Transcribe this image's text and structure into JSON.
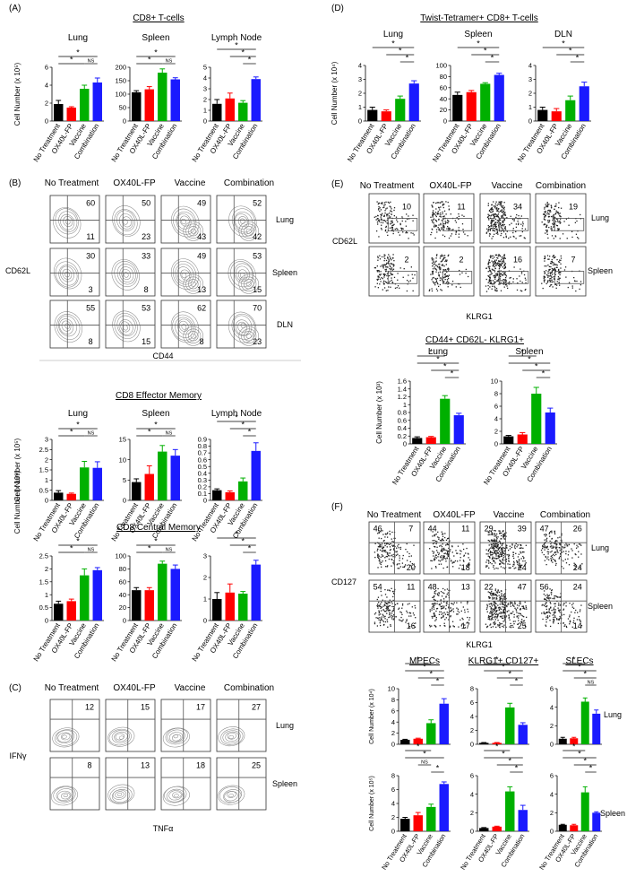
{
  "groups": [
    "No Treatment",
    "OX40L-FP",
    "Vaccine",
    "Combination"
  ],
  "colors": {
    "No Treatment": "#000000",
    "OX40L-FP": "#ff0000",
    "Vaccine": "#00b000",
    "Combination": "#1a1aff"
  },
  "common": {
    "ylabel_e3": "Cell Number (x 10³)",
    "ylabel_e4": "Cell Number (x 10⁴)",
    "ylabel_e5": "Cell Number (x 10⁵)",
    "ns": "NS",
    "star": "*"
  },
  "panels": {
    "A": {
      "letter": "(A)",
      "title": "CD8+ T-cells"
    },
    "B": {
      "letter": "(B)",
      "ylab": "CD62L",
      "xlab": "CD44",
      "rows": [
        "Lung",
        "Spleen",
        "DLN"
      ]
    },
    "C": {
      "letter": "(C)",
      "ylab": "IFNγ",
      "xlab": "TNFα",
      "rows": [
        "Lung",
        "Spleen"
      ]
    },
    "D": {
      "letter": "(D)",
      "title": "Twist-Tetramer+ CD8+ T-cells"
    },
    "E": {
      "letter": "(E)",
      "ylab": "CD62L",
      "xlab": "KLRG1",
      "rows": [
        "Lung",
        "Spleen"
      ]
    },
    "F": {
      "letter": "(F)",
      "ylab": "CD127",
      "xlab": "KLRG1",
      "rows": [
        "Lung",
        "Spleen"
      ]
    },
    "EM": {
      "title": "CD8 Effector Memory"
    },
    "CM": {
      "title": "CD8 Central Memory"
    },
    "E2": {
      "title": "CD44+ CD62L- KLRG1+"
    }
  },
  "flow": {
    "B": [
      [
        "60",
        "11"
      ],
      [
        "50",
        "23"
      ],
      [
        "49",
        "43"
      ],
      [
        "52",
        "42"
      ],
      [
        "30",
        "3"
      ],
      [
        "33",
        "8"
      ],
      [
        "49",
        "13"
      ],
      [
        "53",
        "15"
      ],
      [
        "55",
        "8"
      ],
      [
        "53",
        "15"
      ],
      [
        "62",
        "8"
      ],
      [
        "70",
        "23"
      ]
    ],
    "C": [
      "12",
      "15",
      "17",
      "27",
      "8",
      "13",
      "18",
      "25"
    ],
    "E": [
      "10",
      "11",
      "34",
      "19",
      "2",
      "2",
      "16",
      "7"
    ],
    "F": [
      [
        "46",
        "7",
        "20"
      ],
      [
        "44",
        "11",
        "18"
      ],
      [
        "29",
        "39",
        "24"
      ],
      [
        "47",
        "26",
        "24"
      ],
      [
        "54",
        "11",
        "16"
      ],
      [
        "48",
        "13",
        "17"
      ],
      [
        "22",
        "47",
        "25"
      ],
      [
        "56",
        "24",
        "14"
      ]
    ]
  },
  "chart_data": [
    {
      "id": "A-lung",
      "type": "bar",
      "title": "Lung",
      "ylabel": "Cell Number (x 10⁵)",
      "ylim": [
        0,
        6
      ],
      "ticks": [
        "0",
        "2",
        "4",
        "6"
      ],
      "categories": [
        "No Treatment",
        "OX40L-FP",
        "Vaccine",
        "Combination"
      ],
      "values": [
        1.9,
        1.5,
        3.6,
        4.3
      ],
      "errors": [
        0.4,
        0.1,
        0.4,
        0.5
      ]
    },
    {
      "id": "A-spleen",
      "type": "bar",
      "title": "Spleen",
      "ylim": [
        0,
        200
      ],
      "ticks": [
        "0",
        "50",
        "100",
        "150",
        "200"
      ],
      "categories": [
        "No Treatment",
        "OX40L-FP",
        "Vaccine",
        "Combination"
      ],
      "values": [
        107,
        118,
        180,
        155
      ],
      "errors": [
        6,
        10,
        14,
        6
      ]
    },
    {
      "id": "A-ln",
      "type": "bar",
      "title": "Lymph Node",
      "ylim": [
        0,
        5
      ],
      "ticks": [
        "0",
        "1",
        "2",
        "3",
        "4",
        "5"
      ],
      "categories": [
        "No Treatment",
        "OX40L-FP",
        "Vaccine",
        "Combination"
      ],
      "values": [
        1.6,
        2.1,
        1.7,
        3.9
      ],
      "errors": [
        0.4,
        0.5,
        0.2,
        0.2
      ]
    },
    {
      "id": "D-lung",
      "type": "bar",
      "title": "Lung",
      "ylabel": "Cell Number (x 10⁴)",
      "ylim": [
        0,
        4
      ],
      "ticks": [
        "0",
        "1",
        "2",
        "3",
        "4"
      ],
      "categories": [
        "No Treatment",
        "OX40L-FP",
        "Vaccine",
        "Combination"
      ],
      "values": [
        0.8,
        0.7,
        1.6,
        2.7
      ],
      "errors": [
        0.2,
        0.1,
        0.2,
        0.2
      ]
    },
    {
      "id": "D-spleen",
      "type": "bar",
      "title": "Spleen",
      "ylim": [
        0,
        100
      ],
      "ticks": [
        "0",
        "20",
        "40",
        "60",
        "80",
        "100"
      ],
      "categories": [
        "No Treatment",
        "OX40L-FP",
        "Vaccine",
        "Combination"
      ],
      "values": [
        47,
        52,
        67,
        83
      ],
      "errors": [
        5,
        3,
        2,
        3
      ]
    },
    {
      "id": "D-dln",
      "type": "bar",
      "title": "DLN",
      "ylim": [
        0,
        4
      ],
      "ticks": [
        "0",
        "1",
        "2",
        "3",
        "4"
      ],
      "categories": [
        "No Treatment",
        "OX40L-FP",
        "Vaccine",
        "Combination"
      ],
      "values": [
        0.8,
        0.7,
        1.5,
        2.5
      ],
      "errors": [
        0.2,
        0.2,
        0.3,
        0.3
      ]
    },
    {
      "id": "EM-lung",
      "type": "bar",
      "title": "Lung",
      "ylabel": "Cell Number (x 10⁵)",
      "ylim": [
        0,
        3
      ],
      "ticks": [
        "0",
        "0.5",
        "1",
        "1.5",
        "2",
        "2.5",
        "3"
      ],
      "categories": [
        "No Treatment",
        "OX40L-FP",
        "Vaccine",
        "Combination"
      ],
      "values": [
        0.38,
        0.32,
        1.62,
        1.6
      ],
      "errors": [
        0.1,
        0.04,
        0.3,
        0.3
      ]
    },
    {
      "id": "EM-spleen",
      "type": "bar",
      "title": "Spleen",
      "ylim": [
        0,
        15
      ],
      "ticks": [
        "0",
        "5",
        "10",
        "15"
      ],
      "categories": [
        "No Treatment",
        "OX40L-FP",
        "Vaccine",
        "Combination"
      ],
      "values": [
        4.5,
        6.5,
        12,
        11
      ],
      "errors": [
        0.8,
        2,
        1.5,
        1.5
      ]
    },
    {
      "id": "EM-ln",
      "type": "bar",
      "title": "Lymph Node",
      "ylim": [
        0,
        0.9
      ],
      "ticks": [
        "0",
        "0.1",
        "0.2",
        "0.3",
        "0.4",
        "0.5",
        "0.6",
        "0.7",
        "0.8",
        "0.9"
      ],
      "categories": [
        "No Treatment",
        "OX40L-FP",
        "Vaccine",
        "Combination"
      ],
      "values": [
        0.15,
        0.12,
        0.28,
        0.73
      ],
      "errors": [
        0.02,
        0.02,
        0.05,
        0.12
      ]
    },
    {
      "id": "CM-lung",
      "type": "bar",
      "ylim": [
        0,
        2.5
      ],
      "ticks": [
        "0",
        "0.5",
        "1",
        "1.5",
        "2",
        "2.5"
      ],
      "categories": [
        "No Treatment",
        "OX40L-FP",
        "Vaccine",
        "Combination"
      ],
      "values": [
        0.65,
        0.75,
        1.75,
        1.95
      ],
      "errors": [
        0.1,
        0.08,
        0.25,
        0.1
      ]
    },
    {
      "id": "CM-spleen",
      "type": "bar",
      "ylim": [
        0,
        100
      ],
      "ticks": [
        "0",
        "20",
        "40",
        "60",
        "80",
        "100"
      ],
      "categories": [
        "No Treatment",
        "OX40L-FP",
        "Vaccine",
        "Combination"
      ],
      "values": [
        47,
        47,
        88,
        80
      ],
      "errors": [
        4,
        4,
        4,
        6
      ]
    },
    {
      "id": "CM-ln",
      "type": "bar",
      "ylim": [
        0,
        3
      ],
      "ticks": [
        "0",
        "1",
        "2",
        "3"
      ],
      "categories": [
        "No Treatment",
        "OX40L-FP",
        "Vaccine",
        "Combination"
      ],
      "values": [
        1.0,
        1.3,
        1.25,
        2.6
      ],
      "errors": [
        0.3,
        0.4,
        0.1,
        0.2
      ]
    },
    {
      "id": "E2-lung",
      "type": "bar",
      "title": "Lung",
      "ylabel": "Cell Number (x 10³)",
      "ylim": [
        0,
        1.6
      ],
      "ticks": [
        "0",
        "0.2",
        "0.4",
        "0.6",
        "0.8",
        "1",
        "1.2",
        "1.4",
        "1.6"
      ],
      "categories": [
        "No Treatment",
        "OX40L-FP",
        "Vaccine",
        "Combination"
      ],
      "values": [
        0.15,
        0.17,
        1.15,
        0.73
      ],
      "errors": [
        0.03,
        0.02,
        0.08,
        0.05
      ]
    },
    {
      "id": "E2-spleen",
      "type": "bar",
      "title": "Spleen",
      "ylim": [
        0,
        10
      ],
      "ticks": [
        "0",
        "2",
        "4",
        "6",
        "8",
        "10"
      ],
      "categories": [
        "No Treatment",
        "OX40L-FP",
        "Vaccine",
        "Combination"
      ],
      "values": [
        1.2,
        1.5,
        8,
        5
      ],
      "errors": [
        0.15,
        0.3,
        1,
        0.7
      ]
    },
    {
      "id": "F-mpec-lung",
      "type": "bar",
      "title": "MPECs",
      "ylabel": "Cell Number (x 10⁴)",
      "ylim": [
        0,
        10
      ],
      "ticks": [
        "0",
        "2",
        "4",
        "6",
        "8",
        "10"
      ],
      "categories": [
        "No Treatment",
        "OX40L-FP",
        "Vaccine",
        "Combination"
      ],
      "values": [
        0.8,
        1.0,
        3.8,
        7.3
      ],
      "errors": [
        0.1,
        0.1,
        0.6,
        0.9
      ]
    },
    {
      "id": "F-klrg-lung",
      "type": "bar",
      "title": "KLRG1+ CD127+",
      "ylim": [
        0,
        8
      ],
      "ticks": [
        "0",
        "2",
        "4",
        "6",
        "8"
      ],
      "categories": [
        "No Treatment",
        "OX40L-FP",
        "Vaccine",
        "Combination"
      ],
      "values": [
        0.2,
        0.2,
        5.3,
        2.8
      ],
      "errors": [
        0.05,
        0.05,
        0.6,
        0.3
      ]
    },
    {
      "id": "F-slec-lung",
      "type": "bar",
      "title": "SLECs",
      "ylim": [
        0,
        6
      ],
      "ticks": [
        "0",
        "2",
        "4",
        "6"
      ],
      "categories": [
        "No Treatment",
        "OX40L-FP",
        "Vaccine",
        "Combination"
      ],
      "values": [
        0.6,
        0.65,
        4.6,
        3.3
      ],
      "errors": [
        0.15,
        0.1,
        0.4,
        0.4
      ]
    },
    {
      "id": "F-mpec-spleen",
      "type": "bar",
      "ylabel": "Cell Number (x 10⁵)",
      "ylim": [
        0,
        8
      ],
      "ticks": [
        "0",
        "2",
        "4",
        "6",
        "8"
      ],
      "categories": [
        "No Treatment",
        "OX40L-FP",
        "Vaccine",
        "Combination"
      ],
      "values": [
        1.8,
        2.3,
        3.5,
        6.8
      ],
      "errors": [
        0.2,
        0.4,
        0.4,
        0.3
      ]
    },
    {
      "id": "F-klrg-spleen",
      "type": "bar",
      "ylim": [
        0,
        6
      ],
      "ticks": [
        "0",
        "2",
        "4",
        "6"
      ],
      "categories": [
        "No Treatment",
        "OX40L-FP",
        "Vaccine",
        "Combination"
      ],
      "values": [
        0.35,
        0.5,
        4.3,
        2.3
      ],
      "errors": [
        0.05,
        0.05,
        0.5,
        0.5
      ]
    },
    {
      "id": "F-slec-spleen",
      "type": "bar",
      "ylim": [
        0,
        6
      ],
      "ticks": [
        "0",
        "2",
        "4",
        "6"
      ],
      "categories": [
        "No Treatment",
        "OX40L-FP",
        "Vaccine",
        "Combination"
      ],
      "values": [
        0.7,
        0.65,
        4.2,
        2.0
      ],
      "errors": [
        0.05,
        0.1,
        0.6,
        0.1
      ]
    }
  ]
}
